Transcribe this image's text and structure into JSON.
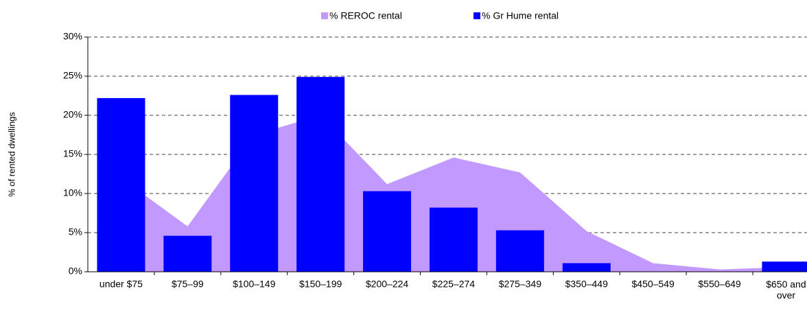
{
  "chart_data": {
    "type": "bar-area",
    "y_label": "% of rented dwellings",
    "categories": [
      "under $75",
      "$75–99",
      "$100–149",
      "$150–199",
      "$200–224",
      "$225–274",
      "$275–349",
      "$350–449",
      "$450–549",
      "$550–649",
      "$650 and over"
    ],
    "series": [
      {
        "name": "% REROC rental",
        "color": "#c299ff",
        "kind": "area",
        "values": [
          12,
          5.8,
          17.5,
          20,
          11.2,
          14.6,
          12.7,
          5.2,
          1.1,
          0.3,
          0.6
        ]
      },
      {
        "name": "% Gr Hume rental",
        "color": "#0000ff",
        "kind": "bar",
        "values": [
          22.2,
          4.6,
          22.6,
          24.9,
          10.3,
          8.2,
          5.3,
          1.1,
          0,
          0,
          1.3
        ]
      }
    ],
    "ylim": [
      0,
      30
    ],
    "yticks": [
      {
        "value": 0,
        "label": "0%"
      },
      {
        "value": 5,
        "label": "5%"
      },
      {
        "value": 10,
        "label": "10%"
      },
      {
        "value": 15,
        "label": "15%"
      },
      {
        "value": 20,
        "label": "20%"
      },
      {
        "value": 25,
        "label": "25%"
      },
      {
        "value": 30,
        "label": "30%"
      }
    ],
    "grid": true,
    "legend": "top"
  }
}
